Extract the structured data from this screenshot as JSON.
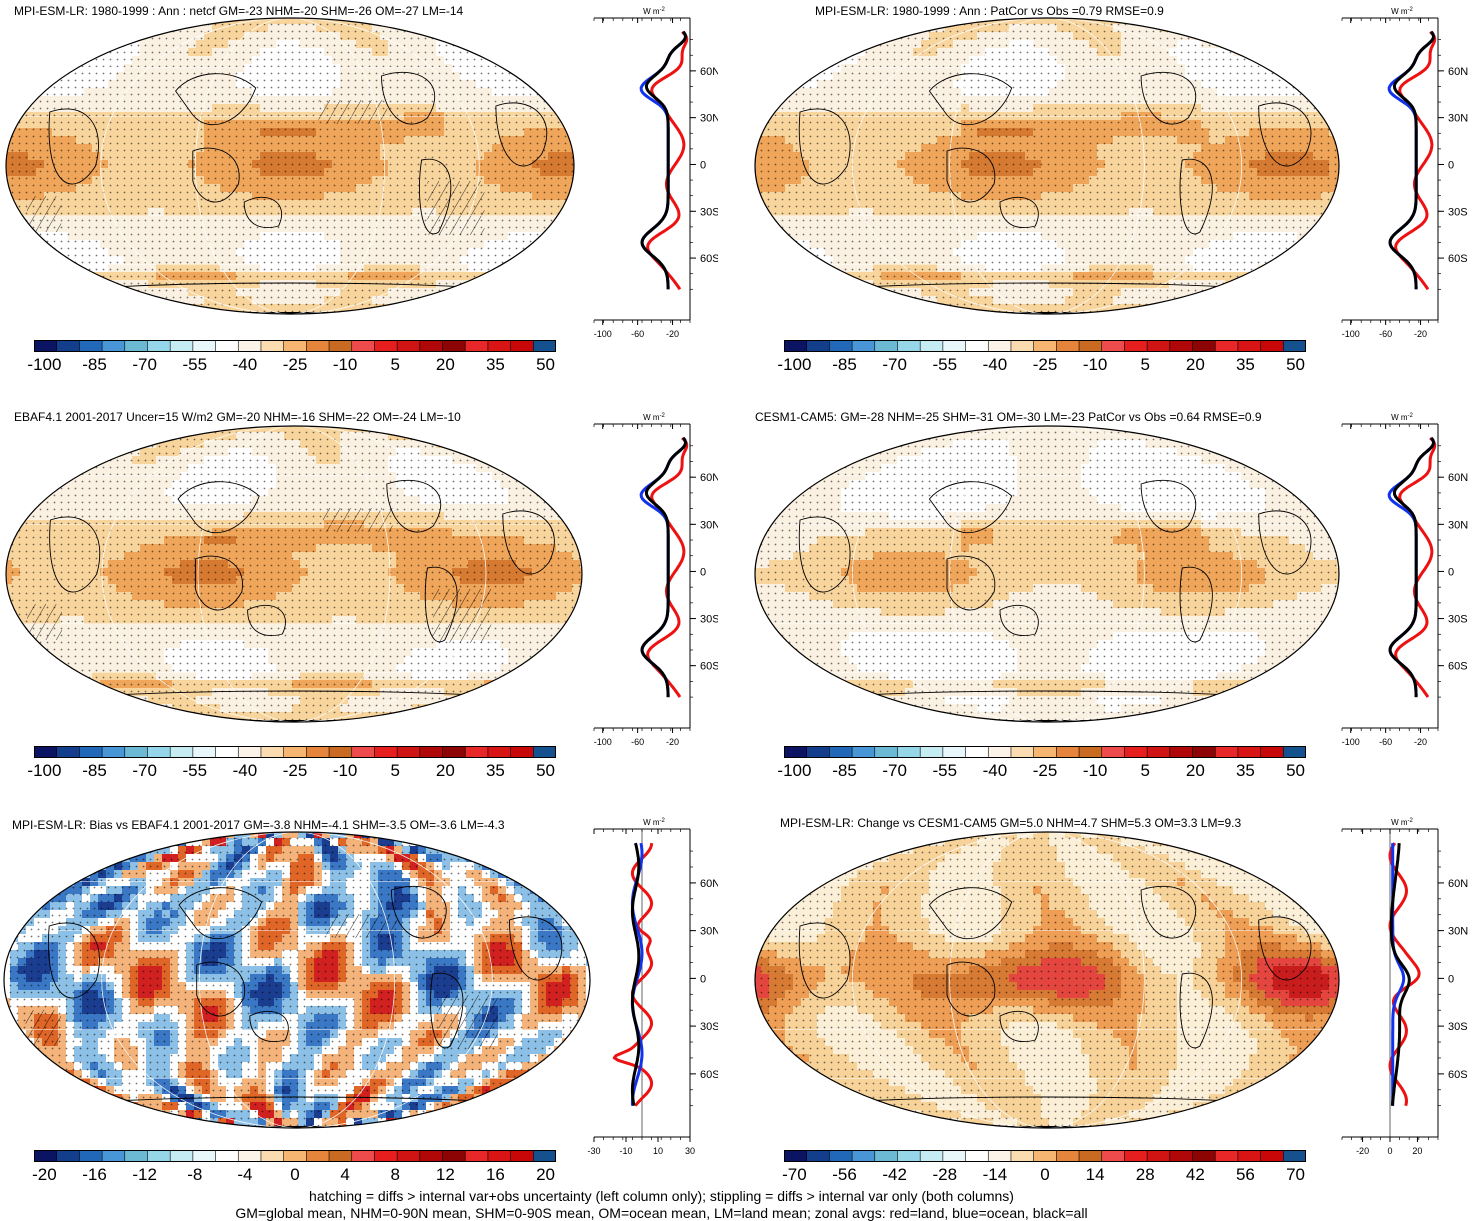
{
  "panels": [
    {
      "id": "p1",
      "title": "MPI-ESM-LR: 1980-1999 : Ann : netcf GM=-23 NHM=-20 SHM=-26 OM=-27 LM=-14",
      "scheme": "abs",
      "hatching": true,
      "colorbar_labels": [
        "-100",
        "-85",
        "-70",
        "-55",
        "-40",
        "-25",
        "-10",
        "5",
        "20",
        "35",
        "50"
      ],
      "profile": {
        "ticks": [
          "-100",
          "-60",
          "-20"
        ],
        "xmin": -110,
        "xmax": 0,
        "zero_line": false
      }
    },
    {
      "id": "p2",
      "title": "MPI-ESM-LR: 1980-1999 : Ann : PatCor vs Obs =0.79 RMSE=0.9",
      "scheme": "abs",
      "hatching": false,
      "colorbar_labels": [
        "-100",
        "-85",
        "-70",
        "-55",
        "-40",
        "-25",
        "-10",
        "5",
        "20",
        "35",
        "50"
      ],
      "profile": {
        "ticks": [
          "-100",
          "-60",
          "-20"
        ],
        "xmin": -110,
        "xmax": 0,
        "zero_line": false
      }
    },
    {
      "id": "p3",
      "title": "EBAF4.1 2001-2017 Uncer=15 W/m2 GM=-20 NHM=-16 SHM=-22 OM=-24 LM=-10",
      "scheme": "abs",
      "hatching": true,
      "colorbar_labels": [
        "-100",
        "-85",
        "-70",
        "-55",
        "-40",
        "-25",
        "-10",
        "5",
        "20",
        "35",
        "50"
      ],
      "profile": {
        "ticks": [
          "-100",
          "-60",
          "-20"
        ],
        "xmin": -110,
        "xmax": 0,
        "zero_line": false
      }
    },
    {
      "id": "p4",
      "title": "CESM1-CAM5: GM=-28 NHM=-25 SHM=-31 OM=-30 LM=-23 PatCor vs Obs =0.64 RMSE=0.9",
      "scheme": "abs",
      "hatching": false,
      "colorbar_labels": [
        "-100",
        "-85",
        "-70",
        "-55",
        "-40",
        "-25",
        "-10",
        "5",
        "20",
        "35",
        "50"
      ],
      "profile": {
        "ticks": [
          "-100",
          "-60",
          "-20"
        ],
        "xmin": -110,
        "xmax": 0,
        "zero_line": false
      }
    },
    {
      "id": "p5",
      "title": "MPI-ESM-LR: Bias vs EBAF4.1 2001-2017 GM=-3.8 NHM=-4.1 SHM=-3.5 OM=-3.6 LM=-4.3",
      "scheme": "bias",
      "hatching": true,
      "colorbar_labels": [
        "-20",
        "-16",
        "-12",
        "-8",
        "-4",
        "0",
        "4",
        "8",
        "12",
        "16",
        "20"
      ],
      "profile": {
        "ticks": [
          "-30",
          "-10",
          "10",
          "30"
        ],
        "xmin": -30,
        "xmax": 30,
        "zero_line": true
      }
    },
    {
      "id": "p6",
      "title": "MPI-ESM-LR: Change vs CESM1-CAM5 GM=5.0 NHM=4.7 SHM=5.3 OM=3.3 LM=9.3",
      "scheme": "change",
      "hatching": false,
      "colorbar_labels": [
        "-70",
        "-56",
        "-42",
        "-28",
        "-14",
        "0",
        "14",
        "28",
        "42",
        "56",
        "70"
      ],
      "profile": {
        "ticks": [
          "-20",
          "0",
          "20"
        ],
        "xmin": -35,
        "xmax": 35,
        "zero_line": true
      }
    }
  ],
  "profile_units": "W m",
  "profile_units_sup": "-2",
  "lat_labels": [
    "60N",
    "30N",
    "0",
    "30S",
    "60S"
  ],
  "legend_series": {
    "land": {
      "label": "red=land",
      "color": "#ee1111"
    },
    "ocean": {
      "label": "blue=ocean",
      "color": "#1133ee"
    },
    "all": {
      "label": "black=all",
      "color": "#000000"
    }
  },
  "colorbar_colors": [
    "#0b1463",
    "#123e8c",
    "#2169b8",
    "#4896d6",
    "#6cb9d4",
    "#95d7e8",
    "#c6ecf3",
    "#e8f7fa",
    "#ffffff",
    "#fbf3e8",
    "#fbdcb0",
    "#f6b672",
    "#e4853b",
    "#c96a22",
    "#ee4c4c",
    "#e61e1e",
    "#d01414",
    "#b00808",
    "#8c0404",
    "#e82828",
    "#d81414",
    "#c80808",
    "#15508f"
  ],
  "footer": {
    "line1": "hatching = diffs > internal var+obs uncertainty (left column only); stippling = diffs > internal var only (both columns)",
    "line2": "GM=global mean, NHM=0-90N mean, SHM=0-90S mean, OM=ocean mean, LM=land mean; zonal avgs: red=land, blue=ocean, black=all"
  }
}
